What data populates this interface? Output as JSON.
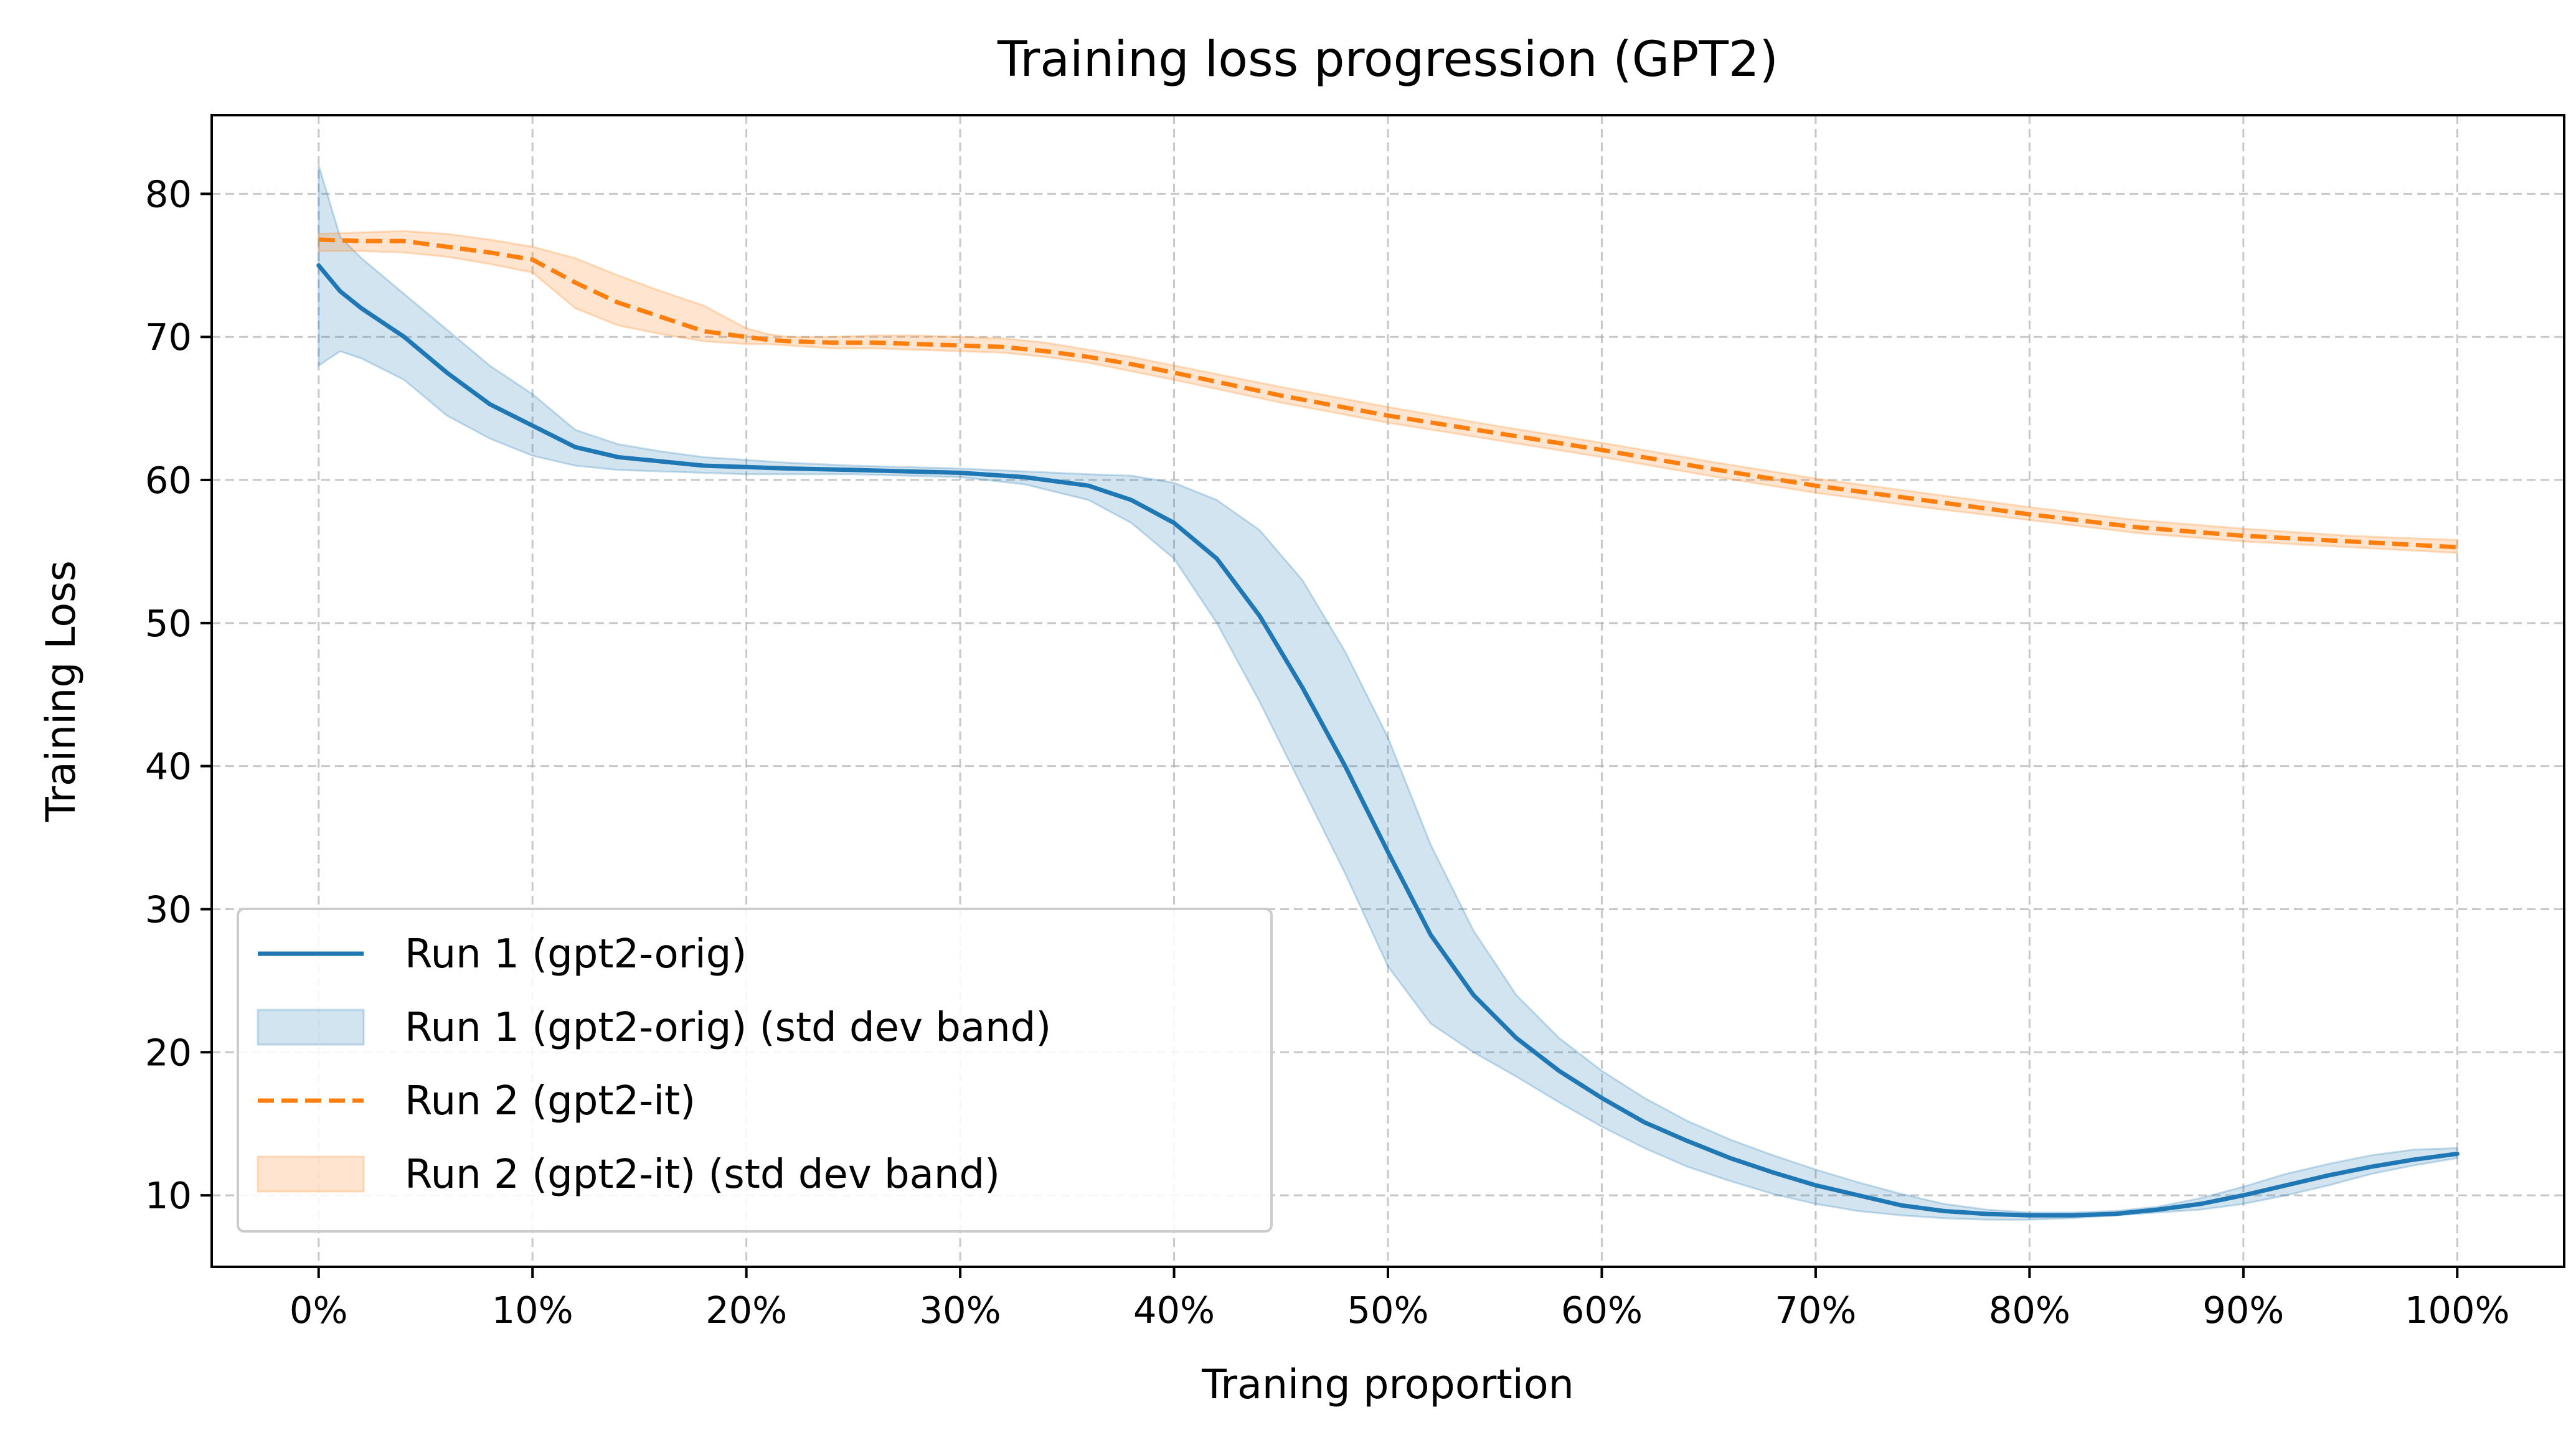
{
  "chart_data": {
    "type": "line",
    "title": "Training loss progression (GPT2)",
    "xlabel": "Traning proportion",
    "ylabel": "Training Loss",
    "xlim": [
      -5,
      105
    ],
    "ylim": [
      5,
      85.5
    ],
    "x_ticks": [
      0,
      10,
      20,
      30,
      40,
      50,
      60,
      70,
      80,
      90,
      100
    ],
    "x_tick_labels": [
      "0%",
      "10%",
      "20%",
      "30%",
      "40%",
      "50%",
      "60%",
      "70%",
      "80%",
      "90%",
      "100%"
    ],
    "y_ticks": [
      10,
      20,
      30,
      40,
      50,
      60,
      70,
      80
    ],
    "y_tick_labels": [
      "10",
      "20",
      "30",
      "40",
      "50",
      "60",
      "70",
      "80"
    ],
    "grid": true,
    "legend_position": "lower-left",
    "series": [
      {
        "name": "Run 1 (gpt2-orig)",
        "band_name": "Run 1 (gpt2-orig) (std dev band)",
        "color": "#1f77b4",
        "line_style": "solid",
        "x": [
          0,
          1,
          2,
          4,
          6,
          8,
          10,
          12,
          14,
          16,
          18,
          20,
          22,
          25,
          30,
          33,
          36,
          38,
          40,
          42,
          44,
          46,
          48,
          50,
          52,
          54,
          56,
          58,
          60,
          62,
          64,
          66,
          68,
          70,
          72,
          74,
          76,
          78,
          80,
          82,
          84,
          86,
          88,
          90,
          92,
          94,
          96,
          98,
          100
        ],
        "y": [
          75.0,
          73.2,
          72.0,
          70.0,
          67.5,
          65.3,
          63.8,
          62.3,
          61.6,
          61.3,
          61.0,
          60.9,
          60.8,
          60.7,
          60.5,
          60.2,
          59.6,
          58.6,
          57.0,
          54.5,
          50.5,
          45.5,
          40.0,
          34.0,
          28.2,
          24.0,
          21.0,
          18.7,
          16.8,
          15.1,
          13.8,
          12.6,
          11.6,
          10.7,
          10.0,
          9.3,
          8.9,
          8.7,
          8.6,
          8.6,
          8.7,
          9.0,
          9.4,
          10.0,
          10.7,
          11.4,
          12.0,
          12.5,
          12.9
        ],
        "lower": [
          68.0,
          69.0,
          68.5,
          67.0,
          64.5,
          62.9,
          61.7,
          61.0,
          60.7,
          60.6,
          60.5,
          60.4,
          60.4,
          60.4,
          60.2,
          59.7,
          58.6,
          57.0,
          54.5,
          50.0,
          44.5,
          38.5,
          32.5,
          26.0,
          22.0,
          20.0,
          18.3,
          16.5,
          14.8,
          13.3,
          12.0,
          11.0,
          10.1,
          9.4,
          8.9,
          8.6,
          8.4,
          8.3,
          8.3,
          8.4,
          8.6,
          8.8,
          9.0,
          9.4,
          10.0,
          10.7,
          11.5,
          12.1,
          12.6
        ],
        "upper": [
          82.0,
          77.0,
          75.5,
          73.0,
          70.5,
          68.0,
          66.0,
          63.5,
          62.5,
          62.0,
          61.6,
          61.4,
          61.2,
          61.0,
          60.8,
          60.6,
          60.4,
          60.3,
          59.8,
          58.6,
          56.5,
          53.0,
          48.0,
          42.0,
          34.5,
          28.5,
          24.0,
          21.0,
          18.7,
          16.8,
          15.2,
          13.9,
          12.8,
          11.8,
          10.9,
          10.1,
          9.4,
          9.0,
          8.8,
          8.8,
          8.9,
          9.2,
          9.8,
          10.6,
          11.5,
          12.2,
          12.8,
          13.2,
          13.3
        ]
      },
      {
        "name": "Run 2 (gpt2-it)",
        "band_name": "Run 2 (gpt2-it) (std dev band)",
        "color": "#ff7f0e",
        "line_style": "dashed",
        "x": [
          0,
          2,
          4,
          6,
          8,
          10,
          12,
          14,
          16,
          18,
          20,
          21,
          22,
          24,
          26,
          28,
          30,
          32,
          34,
          36,
          38,
          40,
          45,
          50,
          55,
          60,
          65,
          70,
          75,
          80,
          85,
          90,
          95,
          100
        ],
        "y": [
          76.8,
          76.7,
          76.7,
          76.3,
          75.9,
          75.4,
          73.8,
          72.4,
          71.4,
          70.4,
          70.0,
          69.8,
          69.7,
          69.6,
          69.6,
          69.5,
          69.4,
          69.3,
          69.0,
          68.6,
          68.1,
          67.5,
          65.9,
          64.5,
          63.3,
          62.1,
          60.8,
          59.6,
          58.6,
          57.6,
          56.7,
          56.1,
          55.7,
          55.3
        ],
        "lower": [
          76.0,
          76.0,
          75.9,
          75.6,
          75.1,
          74.5,
          72.0,
          70.8,
          70.2,
          69.7,
          69.5,
          69.5,
          69.4,
          69.2,
          69.2,
          69.1,
          69.0,
          68.9,
          68.6,
          68.2,
          67.6,
          67.0,
          65.4,
          64.0,
          62.8,
          61.6,
          60.3,
          59.1,
          58.1,
          57.2,
          56.3,
          55.7,
          55.3,
          54.9
        ],
        "upper": [
          77.2,
          77.3,
          77.4,
          77.2,
          76.8,
          76.3,
          75.5,
          74.3,
          73.2,
          72.2,
          70.6,
          70.2,
          70.0,
          70.0,
          70.1,
          70.1,
          70.0,
          69.9,
          69.6,
          69.1,
          68.6,
          68.0,
          66.5,
          65.1,
          63.8,
          62.6,
          61.3,
          60.1,
          59.1,
          58.1,
          57.2,
          56.6,
          56.1,
          55.8
        ]
      }
    ]
  }
}
